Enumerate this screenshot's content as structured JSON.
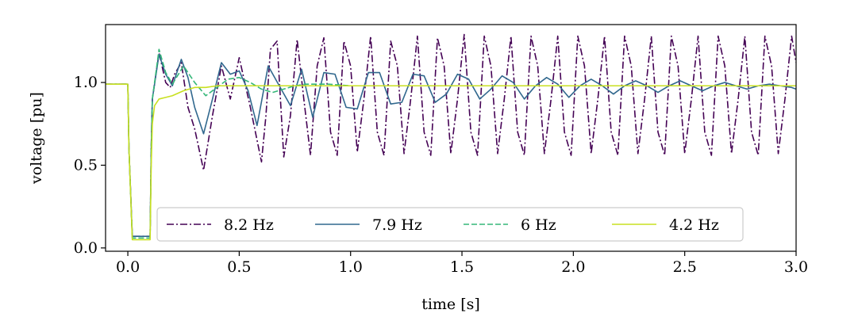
{
  "chart_data": {
    "type": "line",
    "title": "",
    "xlabel": "time [s]",
    "ylabel": "voltage [pu]",
    "xlim": [
      -0.1,
      3.0
    ],
    "ylim": [
      -0.02,
      1.35
    ],
    "x_ticks": [
      "0.0",
      "0.5",
      "1.0",
      "1.5",
      "2.0",
      "2.5",
      "3.0"
    ],
    "x_tick_values": [
      0,
      0.5,
      1.0,
      1.5,
      2.0,
      2.5,
      3.0
    ],
    "y_ticks": [
      "0.0",
      "0.5",
      "1.0"
    ],
    "y_tick_values": [
      0,
      0.5,
      1.0
    ],
    "grid": false,
    "legend_position": "bottom-center",
    "series": [
      {
        "name": "8.2 Hz",
        "color": "#440154",
        "dash": "dashdot",
        "x": [
          -0.1,
          0.0,
          0.005,
          0.02,
          0.1,
          0.105,
          0.11,
          0.14,
          0.17,
          0.19,
          0.21,
          0.24,
          0.27,
          0.3,
          0.34,
          0.38,
          0.42,
          0.46,
          0.5,
          0.55,
          0.6,
          0.62,
          0.64,
          0.67,
          0.7,
          0.73,
          0.76,
          0.79,
          0.82,
          0.85,
          0.88,
          0.91,
          0.94,
          0.97,
          1.0,
          1.03,
          1.06,
          1.09,
          1.12,
          1.15,
          1.18,
          1.21,
          1.24,
          1.27,
          1.3,
          1.33,
          1.36,
          1.39,
          1.42,
          1.45,
          1.48,
          1.51,
          1.54,
          1.57,
          1.6,
          1.63,
          1.66,
          1.69,
          1.72,
          1.75,
          1.78,
          1.81,
          1.84,
          1.87,
          1.9,
          1.93,
          1.96,
          1.99,
          2.02,
          2.05,
          2.08,
          2.11,
          2.14,
          2.17,
          2.2,
          2.23,
          2.26,
          2.29,
          2.32,
          2.35,
          2.38,
          2.41,
          2.44,
          2.47,
          2.5,
          2.53,
          2.56,
          2.59,
          2.62,
          2.65,
          2.68,
          2.71,
          2.74,
          2.77,
          2.8,
          2.83,
          2.86,
          2.89,
          2.92,
          2.95,
          2.98,
          3.0
        ],
        "y": [
          0.99,
          0.99,
          0.6,
          0.07,
          0.07,
          0.6,
          0.9,
          1.18,
          1.0,
          0.97,
          1.05,
          1.12,
          0.85,
          0.72,
          0.47,
          0.8,
          1.1,
          0.9,
          1.15,
          0.85,
          0.52,
          0.8,
          1.2,
          1.25,
          0.55,
          0.8,
          1.26,
          0.9,
          0.56,
          1.1,
          1.27,
          0.7,
          0.56,
          1.25,
          1.1,
          0.58,
          0.9,
          1.28,
          0.7,
          0.56,
          1.25,
          1.1,
          0.57,
          0.9,
          1.28,
          0.7,
          0.56,
          1.27,
          1.1,
          0.57,
          0.9,
          1.29,
          0.7,
          0.56,
          1.28,
          1.1,
          0.57,
          0.9,
          1.28,
          0.7,
          0.56,
          1.28,
          1.1,
          0.57,
          0.9,
          1.28,
          0.7,
          0.56,
          1.28,
          1.1,
          0.57,
          0.9,
          1.28,
          0.7,
          0.56,
          1.28,
          1.1,
          0.57,
          0.9,
          1.28,
          0.7,
          0.56,
          1.28,
          1.1,
          0.57,
          0.9,
          1.28,
          0.7,
          0.56,
          1.28,
          1.1,
          0.57,
          0.9,
          1.28,
          0.7,
          0.56,
          1.28,
          1.1,
          0.57,
          0.9,
          1.28,
          1.12
        ]
      },
      {
        "name": "7.9 Hz",
        "color": "#31688e",
        "dash": "solid",
        "x": [
          -0.1,
          0.0,
          0.005,
          0.02,
          0.1,
          0.105,
          0.11,
          0.14,
          0.17,
          0.2,
          0.24,
          0.27,
          0.3,
          0.34,
          0.38,
          0.42,
          0.46,
          0.5,
          0.54,
          0.58,
          0.63,
          0.68,
          0.73,
          0.78,
          0.83,
          0.88,
          0.93,
          0.98,
          1.03,
          1.08,
          1.13,
          1.18,
          1.23,
          1.28,
          1.33,
          1.38,
          1.43,
          1.48,
          1.53,
          1.58,
          1.63,
          1.68,
          1.73,
          1.78,
          1.83,
          1.88,
          1.93,
          1.98,
          2.03,
          2.08,
          2.13,
          2.18,
          2.23,
          2.28,
          2.33,
          2.38,
          2.43,
          2.48,
          2.53,
          2.58,
          2.63,
          2.68,
          2.73,
          2.78,
          2.83,
          2.88,
          2.93,
          2.98,
          3.0
        ],
        "y": [
          0.99,
          0.99,
          0.6,
          0.07,
          0.07,
          0.6,
          0.9,
          1.17,
          1.05,
          0.98,
          1.14,
          1.03,
          0.85,
          0.69,
          0.9,
          1.12,
          1.05,
          1.07,
          0.95,
          0.74,
          1.1,
          0.98,
          0.86,
          1.08,
          0.79,
          1.06,
          1.05,
          0.85,
          0.84,
          1.06,
          1.06,
          0.87,
          0.88,
          1.05,
          1.04,
          0.88,
          0.93,
          1.05,
          1.02,
          0.9,
          0.96,
          1.04,
          1.0,
          0.9,
          0.98,
          1.03,
          0.99,
          0.91,
          0.98,
          1.02,
          0.98,
          0.93,
          0.98,
          1.01,
          0.98,
          0.94,
          0.98,
          1.01,
          0.98,
          0.95,
          0.98,
          1.0,
          0.98,
          0.96,
          0.98,
          0.99,
          0.98,
          0.97,
          0.96
        ]
      },
      {
        "name": "6 Hz",
        "color": "#35b779",
        "dash": "dashed",
        "x": [
          -0.1,
          0.0,
          0.005,
          0.02,
          0.1,
          0.105,
          0.11,
          0.14,
          0.17,
          0.2,
          0.25,
          0.3,
          0.35,
          0.4,
          0.45,
          0.5,
          0.55,
          0.6,
          0.65,
          0.7,
          0.75,
          0.8,
          0.9,
          1.0,
          1.2,
          1.4,
          1.6,
          1.8,
          2.0,
          2.5,
          3.0
        ],
        "y": [
          0.99,
          0.99,
          0.6,
          0.06,
          0.06,
          0.6,
          0.9,
          1.2,
          1.06,
          0.99,
          1.1,
          1.0,
          0.92,
          0.97,
          1.02,
          1.03,
          1.0,
          0.96,
          0.94,
          0.96,
          0.98,
          0.99,
          0.99,
          0.98,
          0.98,
          0.98,
          0.98,
          0.98,
          0.98,
          0.98,
          0.98
        ]
      },
      {
        "name": "4.2 Hz",
        "color": "#c8e020",
        "dash": "solid",
        "x": [
          -0.1,
          0.0,
          0.005,
          0.02,
          0.1,
          0.105,
          0.11,
          0.12,
          0.14,
          0.17,
          0.2,
          0.25,
          0.3,
          0.35,
          0.4,
          0.45,
          0.5,
          0.6,
          0.7,
          0.8,
          1.0,
          1.5,
          2.0,
          2.5,
          3.0
        ],
        "y": [
          0.99,
          0.99,
          0.6,
          0.05,
          0.05,
          0.5,
          0.75,
          0.86,
          0.9,
          0.91,
          0.92,
          0.95,
          0.97,
          0.97,
          0.98,
          0.98,
          0.98,
          0.98,
          0.98,
          0.98,
          0.98,
          0.98,
          0.98,
          0.98,
          0.98
        ]
      }
    ]
  }
}
